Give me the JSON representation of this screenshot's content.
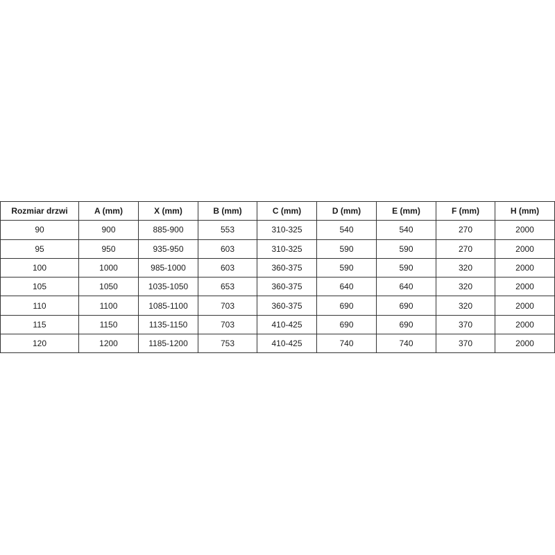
{
  "table": {
    "headers": [
      "Rozmiar drzwi",
      "A (mm)",
      "X (mm)",
      "B (mm)",
      "C (mm)",
      "D (mm)",
      "E (mm)",
      "F (mm)",
      "H (mm)"
    ],
    "rows": [
      [
        "90",
        "900",
        "885-900",
        "553",
        "310-325",
        "540",
        "540",
        "270",
        "2000"
      ],
      [
        "95",
        "950",
        "935-950",
        "603",
        "310-325",
        "590",
        "590",
        "270",
        "2000"
      ],
      [
        "100",
        "1000",
        "985-1000",
        "603",
        "360-375",
        "590",
        "590",
        "320",
        "2000"
      ],
      [
        "105",
        "1050",
        "1035-1050",
        "653",
        "360-375",
        "640",
        "640",
        "320",
        "2000"
      ],
      [
        "110",
        "1100",
        "1085-1100",
        "703",
        "360-375",
        "690",
        "690",
        "320",
        "2000"
      ],
      [
        "115",
        "1150",
        "1135-1150",
        "703",
        "410-425",
        "690",
        "690",
        "370",
        "2000"
      ],
      [
        "120",
        "1200",
        "1185-1200",
        "753",
        "410-425",
        "740",
        "740",
        "370",
        "2000"
      ]
    ]
  }
}
